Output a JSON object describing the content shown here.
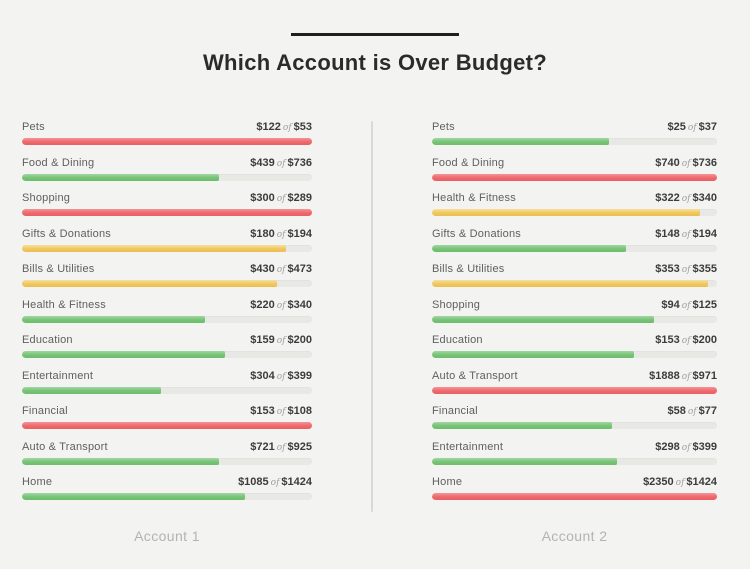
{
  "header": {
    "title": "Which Account is Over Budget?"
  },
  "colors": {
    "background": "#f3f3f1",
    "over_budget_red": "#ee696d",
    "near_budget_yellow": "#f0c75e",
    "under_budget_green": "#76c376",
    "track_gray": "#e8e8e5",
    "title_text": "#2b2b2b",
    "label_text": "#5f5f5f",
    "footer_text": "#b3b3b3"
  },
  "chart_data": {
    "type": "bar",
    "title": "Which Account is Over Budget?",
    "subtitle": "",
    "orientation": "horizontal",
    "of_word": "of",
    "legend": "color encodes budget status: red = over budget, yellow = near budget, green = under budget",
    "panels": [
      {
        "label": "Account 1",
        "rows": [
          {
            "category": "Pets",
            "spent": 122,
            "budget": 53,
            "spent_label": "$122",
            "budget_label": "$53",
            "status": "over",
            "fill_pct": 100
          },
          {
            "category": "Food & Dining",
            "spent": 439,
            "budget": 736,
            "spent_label": "$439",
            "budget_label": "$736",
            "status": "under",
            "fill_pct": 68
          },
          {
            "category": "Shopping",
            "spent": 300,
            "budget": 289,
            "spent_label": "$300",
            "budget_label": "$289",
            "status": "over",
            "fill_pct": 100
          },
          {
            "category": "Gifts & Donations",
            "spent": 180,
            "budget": 194,
            "spent_label": "$180",
            "budget_label": "$194",
            "status": "warning",
            "fill_pct": 91
          },
          {
            "category": "Bills & Utilities",
            "spent": 430,
            "budget": 473,
            "spent_label": "$430",
            "budget_label": "$473",
            "status": "warning",
            "fill_pct": 88
          },
          {
            "category": "Health & Fitness",
            "spent": 220,
            "budget": 340,
            "spent_label": "$220",
            "budget_label": "$340",
            "status": "under",
            "fill_pct": 63
          },
          {
            "category": "Education",
            "spent": 159,
            "budget": 200,
            "spent_label": "$159",
            "budget_label": "$200",
            "status": "under",
            "fill_pct": 70
          },
          {
            "category": "Entertainment",
            "spent": 304,
            "budget": 399,
            "spent_label": "$304",
            "budget_label": "$399",
            "status": "under",
            "fill_pct": 48
          },
          {
            "category": "Financial",
            "spent": 153,
            "budget": 108,
            "spent_label": "$153",
            "budget_label": "$108",
            "status": "over",
            "fill_pct": 100
          },
          {
            "category": "Auto & Transport",
            "spent": 721,
            "budget": 925,
            "spent_label": "$721",
            "budget_label": "$925",
            "status": "under",
            "fill_pct": 68
          },
          {
            "category": "Home",
            "spent": 1085,
            "budget": 1424,
            "spent_label": "$1085",
            "budget_label": "$1424",
            "status": "under",
            "fill_pct": 77
          }
        ]
      },
      {
        "label": "Account 2",
        "rows": [
          {
            "category": "Pets",
            "spent": 25,
            "budget": 37,
            "spent_label": "$25",
            "budget_label": "$37",
            "status": "under",
            "fill_pct": 62
          },
          {
            "category": "Food & Dining",
            "spent": 740,
            "budget": 736,
            "spent_label": "$740",
            "budget_label": "$736",
            "status": "over",
            "fill_pct": 100
          },
          {
            "category": "Health & Fitness",
            "spent": 322,
            "budget": 340,
            "spent_label": "$322",
            "budget_label": "$340",
            "status": "warning",
            "fill_pct": 94
          },
          {
            "category": "Gifts & Donations",
            "spent": 148,
            "budget": 194,
            "spent_label": "$148",
            "budget_label": "$194",
            "status": "under",
            "fill_pct": 68
          },
          {
            "category": "Bills & Utilities",
            "spent": 353,
            "budget": 355,
            "spent_label": "$353",
            "budget_label": "$355",
            "status": "warning",
            "fill_pct": 97
          },
          {
            "category": "Shopping",
            "spent": 94,
            "budget": 125,
            "spent_label": "$94",
            "budget_label": "$125",
            "status": "under",
            "fill_pct": 78
          },
          {
            "category": "Education",
            "spent": 153,
            "budget": 200,
            "spent_label": "$153",
            "budget_label": "$200",
            "status": "under",
            "fill_pct": 71
          },
          {
            "category": "Auto & Transport",
            "spent": 1888,
            "budget": 971,
            "spent_label": "$1888",
            "budget_label": "$971",
            "status": "over",
            "fill_pct": 100
          },
          {
            "category": "Financial",
            "spent": 58,
            "budget": 77,
            "spent_label": "$58",
            "budget_label": "$77",
            "status": "under",
            "fill_pct": 63
          },
          {
            "category": "Entertainment",
            "spent": 298,
            "budget": 399,
            "spent_label": "$298",
            "budget_label": "$399",
            "status": "under",
            "fill_pct": 65
          },
          {
            "category": "Home",
            "spent": 2350,
            "budget": 1424,
            "spent_label": "$2350",
            "budget_label": "$1424",
            "status": "over",
            "fill_pct": 100
          }
        ]
      }
    ]
  }
}
